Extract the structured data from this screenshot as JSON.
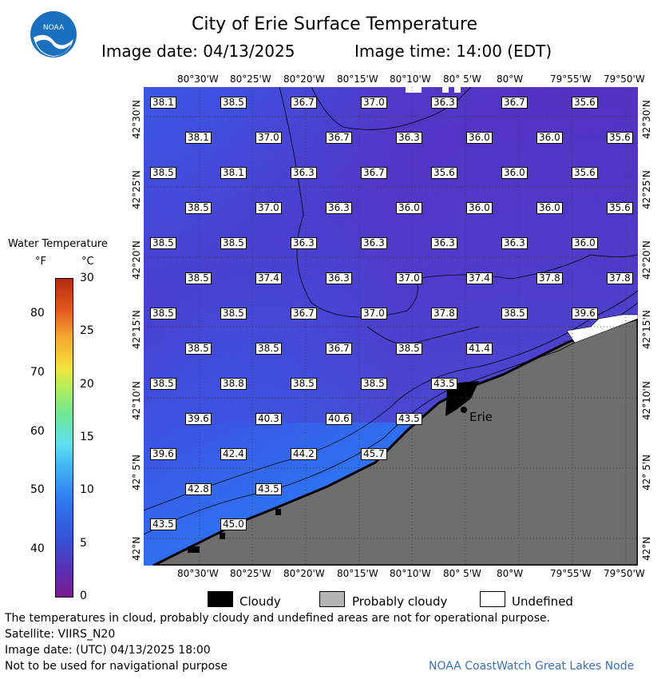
{
  "header": {
    "title": "City of Erie Surface Temperature",
    "date_text": "Image date: 04/13/2025",
    "time_text": "Image time: 14:00 (EDT)"
  },
  "logo": {
    "text": "NOAA"
  },
  "colorbar": {
    "title": "Water Temperature",
    "unit_f": "°F",
    "unit_c": "°C",
    "f_ticks": [
      "80",
      "70",
      "60",
      "50",
      "40"
    ],
    "c_ticks": [
      "30",
      "25",
      "20",
      "15",
      "10",
      "5",
      "0"
    ]
  },
  "axes": {
    "lon_top": [
      "80°30'W",
      "80°25'W",
      "80°20'W",
      "80°15'W",
      "80°10'W",
      "80° 5'W",
      "80°W",
      "79°55'W",
      "79°50'W"
    ],
    "lon_bottom": [
      "80°30'W",
      "80°25'W",
      "80°20'W",
      "80°15'W",
      "80°10'W",
      "80° 5'W",
      "80°W",
      "79°55'W",
      "79°50'W"
    ],
    "lat": [
      "42°30'N",
      "42°25'N",
      "42°20'N",
      "42°15'N",
      "42°10'N",
      "42° 5'N",
      "42°N"
    ]
  },
  "temps": [
    [
      "38.1",
      "38.5",
      "36.7",
      "37.0",
      "36.3",
      "36.7",
      "35.6"
    ],
    [
      "38.1",
      "37.0",
      "36.7",
      "36.3",
      "36.0",
      "36.0",
      "35.6"
    ],
    [
      "38.5",
      "38.1",
      "36.3",
      "36.7",
      "35.6",
      "36.0",
      "35.6"
    ],
    [
      "38.5",
      "37.0",
      "36.3",
      "36.0",
      "36.0",
      "36.0",
      "35.6"
    ],
    [
      "38.5",
      "38.5",
      "36.3",
      "36.3",
      "36.3",
      "36.3",
      "36.0"
    ],
    [
      "38.5",
      "37.4",
      "36.3",
      "37.0",
      "37.4",
      "37.8",
      "37.8"
    ],
    [
      "38.5",
      "38.5",
      "36.7",
      "37.0",
      "37.8",
      "38.5",
      "39.6"
    ],
    [
      "38.5",
      "38.5",
      "36.7",
      "38.5",
      "41.4"
    ],
    [
      "38.5",
      "38.8",
      "38.5",
      "38.5",
      "43.5"
    ],
    [
      "39.6",
      "40.3",
      "40.6",
      "43.5"
    ],
    [
      "39.6",
      "42.4",
      "44.2",
      "45.7"
    ],
    [
      "42.8",
      "43.5"
    ],
    [
      "43.5",
      "45.0"
    ]
  ],
  "city_label": "Erie",
  "legend": {
    "cloudy": "Cloudy",
    "probably_cloudy": "Probably cloudy",
    "undefined": "Undefined"
  },
  "footer": {
    "note": "The temperatures in cloud, probably cloudy and undefined areas are not for operational purpose.",
    "satellite": "Satellite: VIIRS_N20",
    "utc": "Image date: (UTC) 04/13/2025  18:00",
    "nav": "Not to be used for navigational purpose",
    "credit": "NOAA CoastWatch Great Lakes Node"
  }
}
